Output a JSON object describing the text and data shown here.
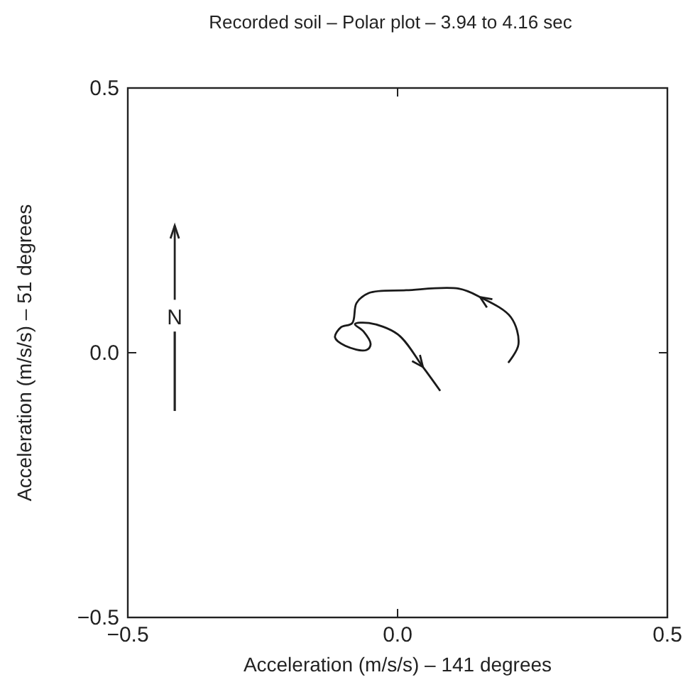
{
  "chart_data": {
    "type": "line",
    "title": "Recorded soil – Polar plot – 3.94 to 4.16 sec",
    "xlabel": "Acceleration (m/s/s) – 141 degrees",
    "ylabel": "Acceleration (m/s/s) – 51 degrees",
    "series": [
      {
        "color": "#1a1a1a",
        "x": [
          0.205,
          0.224,
          0.21,
          0.153,
          0.113,
          0.016,
          -0.053,
          -0.076,
          -0.084,
          -0.105,
          -0.116,
          -0.097,
          -0.058,
          -0.05,
          -0.063,
          -0.079,
          -0.053,
          0.0,
          0.047,
          0.079
        ],
        "values": [
          -0.019,
          0.016,
          0.067,
          0.105,
          0.121,
          0.118,
          0.113,
          0.094,
          0.056,
          0.048,
          0.029,
          0.013,
          0.005,
          0.016,
          0.04,
          0.054,
          0.056,
          0.035,
          -0.027,
          -0.072
        ]
      }
    ],
    "xlim": [
      -0.5,
      0.5
    ],
    "ylim": [
      -0.5,
      0.5
    ],
    "xticks": [
      {
        "value": -0.5,
        "label": "−0.5"
      },
      {
        "value": 0,
        "label": "0.0"
      },
      0.5
    ],
    "yticks": [
      {
        "value": -0.5,
        "label": "−0.5"
      },
      {
        "value": 0,
        "label": "0.0"
      },
      0.5
    ],
    "annotations": [
      "N"
    ],
    "grid": false,
    "marker": "none",
    "line_style": "solid"
  }
}
